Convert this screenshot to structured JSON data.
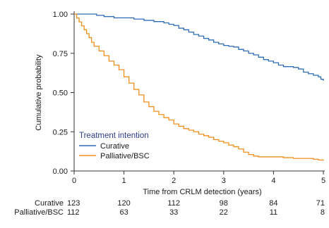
{
  "chart_data": {
    "type": "line",
    "step": true,
    "xlabel": "Time from CRLM detection (years)",
    "ylabel": "Cumulative probability",
    "xlim": [
      0,
      5
    ],
    "ylim": [
      0,
      1
    ],
    "x_ticks": [
      "0",
      "1",
      "2",
      "3",
      "4",
      "5"
    ],
    "y_ticks": [
      "0.00",
      "0.25",
      "0.50",
      "0.75",
      "1.00"
    ],
    "grid": false,
    "legend": {
      "title": "Treatment intention",
      "placement": "bottom-left",
      "title_color": "#2e3f8a",
      "entries": [
        "Curative",
        "Palliative/BSC"
      ]
    },
    "series": [
      {
        "name": "Curative",
        "color": "#2d6db5",
        "points": [
          [
            0,
            1.0
          ],
          [
            0.3,
            1.0
          ],
          [
            0.45,
            0.992
          ],
          [
            0.6,
            0.984
          ],
          [
            0.8,
            0.976
          ],
          [
            1.0,
            0.976
          ],
          [
            1.2,
            0.968
          ],
          [
            1.4,
            0.96
          ],
          [
            1.6,
            0.952
          ],
          [
            1.8,
            0.944
          ],
          [
            1.9,
            0.935
          ],
          [
            2.0,
            0.927
          ],
          [
            2.1,
            0.91
          ],
          [
            2.2,
            0.9
          ],
          [
            2.3,
            0.885
          ],
          [
            2.4,
            0.87
          ],
          [
            2.5,
            0.86
          ],
          [
            2.6,
            0.845
          ],
          [
            2.7,
            0.835
          ],
          [
            2.8,
            0.82
          ],
          [
            2.9,
            0.81
          ],
          [
            3.0,
            0.8
          ],
          [
            3.1,
            0.795
          ],
          [
            3.2,
            0.79
          ],
          [
            3.3,
            0.775
          ],
          [
            3.4,
            0.765
          ],
          [
            3.5,
            0.75
          ],
          [
            3.6,
            0.74
          ],
          [
            3.7,
            0.725
          ],
          [
            3.8,
            0.71
          ],
          [
            3.9,
            0.7
          ],
          [
            4.0,
            0.69
          ],
          [
            4.1,
            0.675
          ],
          [
            4.2,
            0.665
          ],
          [
            4.4,
            0.66
          ],
          [
            4.5,
            0.65
          ],
          [
            4.6,
            0.63
          ],
          [
            4.7,
            0.62
          ],
          [
            4.8,
            0.61
          ],
          [
            4.9,
            0.6
          ],
          [
            4.95,
            0.585
          ],
          [
            5.0,
            0.575
          ]
        ]
      },
      {
        "name": "Palliative/BSC",
        "color": "#f28e1c",
        "points": [
          [
            0,
            1.0
          ],
          [
            0.05,
            0.975
          ],
          [
            0.1,
            0.95
          ],
          [
            0.15,
            0.925
          ],
          [
            0.2,
            0.9
          ],
          [
            0.25,
            0.875
          ],
          [
            0.3,
            0.85
          ],
          [
            0.35,
            0.82
          ],
          [
            0.4,
            0.795
          ],
          [
            0.5,
            0.765
          ],
          [
            0.6,
            0.735
          ],
          [
            0.7,
            0.7
          ],
          [
            0.8,
            0.675
          ],
          [
            0.9,
            0.645
          ],
          [
            1.0,
            0.6
          ],
          [
            1.1,
            0.56
          ],
          [
            1.2,
            0.52
          ],
          [
            1.3,
            0.485
          ],
          [
            1.4,
            0.44
          ],
          [
            1.5,
            0.41
          ],
          [
            1.6,
            0.38
          ],
          [
            1.7,
            0.36
          ],
          [
            1.8,
            0.34
          ],
          [
            1.9,
            0.325
          ],
          [
            2.0,
            0.3
          ],
          [
            2.1,
            0.285
          ],
          [
            2.2,
            0.27
          ],
          [
            2.3,
            0.26
          ],
          [
            2.4,
            0.25
          ],
          [
            2.5,
            0.235
          ],
          [
            2.6,
            0.225
          ],
          [
            2.7,
            0.215
          ],
          [
            2.8,
            0.2
          ],
          [
            2.9,
            0.19
          ],
          [
            3.0,
            0.18
          ],
          [
            3.1,
            0.165
          ],
          [
            3.2,
            0.155
          ],
          [
            3.3,
            0.14
          ],
          [
            3.4,
            0.12
          ],
          [
            3.5,
            0.105
          ],
          [
            3.6,
            0.095
          ],
          [
            3.7,
            0.09
          ],
          [
            3.8,
            0.09
          ],
          [
            4.0,
            0.09
          ],
          [
            4.2,
            0.085
          ],
          [
            4.4,
            0.08
          ],
          [
            4.6,
            0.08
          ],
          [
            4.8,
            0.075
          ],
          [
            4.9,
            0.07
          ],
          [
            5.0,
            0.065
          ]
        ]
      }
    ],
    "risk_table": {
      "times": [
        0,
        1,
        2,
        3,
        4,
        5
      ],
      "rows": [
        {
          "label": "Curative",
          "counts": [
            "123",
            "120",
            "112",
            "98",
            "84",
            "71"
          ]
        },
        {
          "label": "Palliative/BSC",
          "counts": [
            "112",
            "63",
            "33",
            "22",
            "11",
            "8"
          ]
        }
      ]
    }
  }
}
